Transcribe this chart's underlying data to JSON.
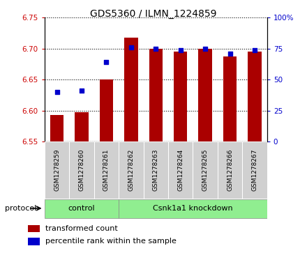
{
  "title": "GDS5360 / ILMN_1224859",
  "samples": [
    "GSM1278259",
    "GSM1278260",
    "GSM1278261",
    "GSM1278262",
    "GSM1278263",
    "GSM1278264",
    "GSM1278265",
    "GSM1278266",
    "GSM1278267"
  ],
  "transformed_count": [
    6.593,
    6.598,
    6.65,
    6.718,
    6.7,
    6.695,
    6.7,
    6.688,
    6.695
  ],
  "percentile_rank": [
    40,
    41,
    64,
    76,
    75,
    74,
    75,
    71,
    74
  ],
  "bar_color": "#aa0000",
  "dot_color": "#0000cc",
  "ylim_left": [
    6.55,
    6.75
  ],
  "ylim_right": [
    0,
    100
  ],
  "yticks_left": [
    6.55,
    6.6,
    6.65,
    6.7,
    6.75
  ],
  "yticks_right": [
    0,
    25,
    50,
    75,
    100
  ],
  "ytick_labels_right": [
    "0",
    "25",
    "50",
    "75",
    "100%"
  ],
  "groups": [
    {
      "label": "control",
      "start": 0,
      "end": 2
    },
    {
      "label": "Csnk1a1 knockdown",
      "start": 3,
      "end": 8
    }
  ],
  "protocol_label": "protocol",
  "legend_bar_label": "transformed count",
  "legend_dot_label": "percentile rank within the sample",
  "plot_bg": "#ffffff",
  "bar_bottom": 6.55,
  "green_color": "#90ee90",
  "sample_box_color": "#d0d0d0"
}
